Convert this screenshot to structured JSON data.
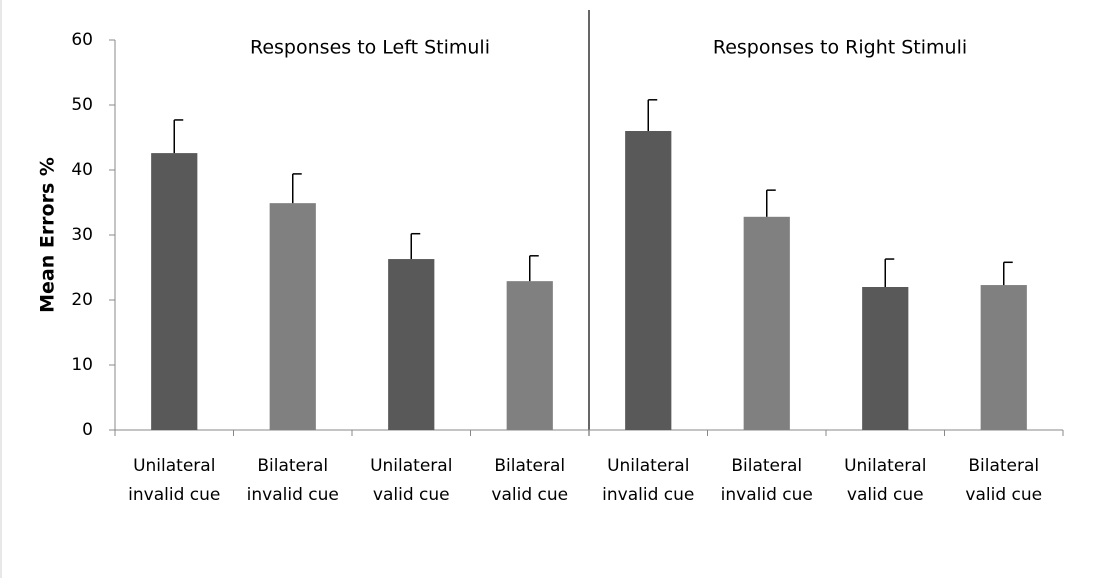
{
  "chart_data": {
    "type": "bar",
    "y_label": "Mean Errors %",
    "annotations": [
      "Responses to Left Stimuli",
      "Responses to Right Stimuli"
    ],
    "categories": [
      [
        "Unilateral",
        "invalid cue"
      ],
      [
        "Bilateral",
        "invalid cue"
      ],
      [
        "Unilateral",
        "valid cue"
      ],
      [
        "Bilateral",
        "valid cue"
      ],
      [
        "Unilateral",
        "invalid cue"
      ],
      [
        "Bilateral",
        "invalid cue"
      ],
      [
        "Unilateral",
        "valid cue"
      ],
      [
        "Bilateral",
        "valid cue"
      ]
    ],
    "values": [
      42.6,
      34.9,
      26.3,
      22.9,
      46.0,
      32.8,
      22.0,
      22.3
    ],
    "errors": [
      5.1,
      4.5,
      3.9,
      3.9,
      4.8,
      4.1,
      4.3,
      3.5
    ],
    "colors": [
      "#595959",
      "#808080",
      "#595959",
      "#808080",
      "#595959",
      "#808080",
      "#595959",
      "#808080"
    ],
    "ylim": [
      0,
      60
    ],
    "yticks": [
      0,
      10,
      20,
      30,
      40,
      50,
      60
    ]
  }
}
